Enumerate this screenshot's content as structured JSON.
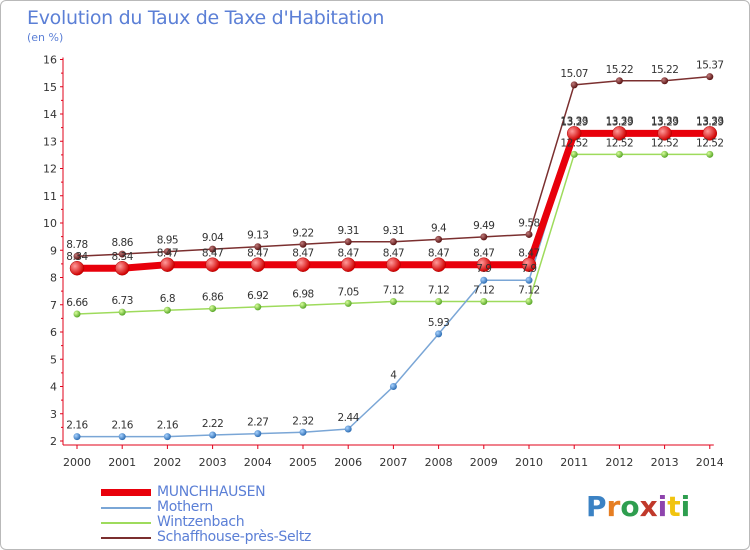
{
  "title": "Evolution du Taux de Taxe d'Habitation",
  "subtitle": "(en %)",
  "logo": {
    "text": "Proxiti",
    "colors": [
      "#3b82c4",
      "#e67e22",
      "#2e9e4f",
      "#c0392b",
      "#8e44ad",
      "#f1c40f",
      "#2e9e4f"
    ]
  },
  "chart_data": {
    "type": "line",
    "x": [
      "2000",
      "2001",
      "2002",
      "2003",
      "2004",
      "2005",
      "2006",
      "2007",
      "2008",
      "2009",
      "2010",
      "2011",
      "2012",
      "2013",
      "2014"
    ],
    "ylim": [
      2,
      16
    ],
    "yticks": [
      2,
      3,
      4,
      5,
      6,
      7,
      8,
      9,
      10,
      11,
      12,
      13,
      14,
      15,
      16
    ],
    "grid": false,
    "legend_position": "bottom-left",
    "series": [
      {
        "name": "MUNCHHAUSEN",
        "color": "#e8000b",
        "width": 7,
        "values": [
          8.34,
          8.34,
          8.47,
          8.47,
          8.47,
          8.47,
          8.47,
          8.47,
          8.47,
          8.47,
          8.47,
          13.29,
          13.29,
          13.29,
          13.29
        ],
        "labels": [
          "8.34",
          "8.34",
          "8.47",
          "8.47",
          "8.47",
          "8.47",
          "8.47",
          "8.47",
          "8.47",
          "8.47",
          "8.47",
          "13.29",
          "13.29",
          "13.29",
          "13.29"
        ]
      },
      {
        "name": "Mothern",
        "color": "#7aa6d6",
        "width": 1.5,
        "values": [
          2.16,
          2.16,
          2.16,
          2.22,
          2.27,
          2.32,
          2.44,
          4,
          5.93,
          7.9,
          7.9,
          13.33,
          13.33,
          13.33,
          13.33
        ],
        "labels": [
          "2.16",
          "2.16",
          "2.16",
          "2.22",
          "2.27",
          "2.32",
          "2.44",
          "4",
          "5.93",
          "7.9",
          "7.9",
          "13.33",
          "13.33",
          "13.33",
          "13.33"
        ]
      },
      {
        "name": "Wintzenbach",
        "color": "#9edb5c",
        "width": 1.5,
        "values": [
          6.66,
          6.73,
          6.8,
          6.86,
          6.92,
          6.98,
          7.05,
          7.12,
          7.12,
          7.12,
          7.12,
          12.52,
          12.52,
          12.52,
          12.52
        ],
        "labels": [
          "6.66",
          "6.73",
          "6.8",
          "6.86",
          "6.92",
          "6.98",
          "7.05",
          "7.12",
          "7.12",
          "7.12",
          "7.12",
          "12.52",
          "12.52",
          "12.52",
          "12.52"
        ]
      },
      {
        "name": "Schaffhouse-près-Seltz",
        "color": "#7b2f2f",
        "width": 1.5,
        "values": [
          8.78,
          8.86,
          8.95,
          9.04,
          9.13,
          9.22,
          9.31,
          9.31,
          9.4,
          9.49,
          9.58,
          15.07,
          15.22,
          15.22,
          15.37
        ],
        "labels": [
          "8.78",
          "8.86",
          "8.95",
          "9.04",
          "9.13",
          "9.22",
          "9.31",
          "9.31",
          "9.4",
          "9.49",
          "9.58",
          "15.07",
          "15.22",
          "15.22",
          "15.37"
        ]
      }
    ]
  }
}
